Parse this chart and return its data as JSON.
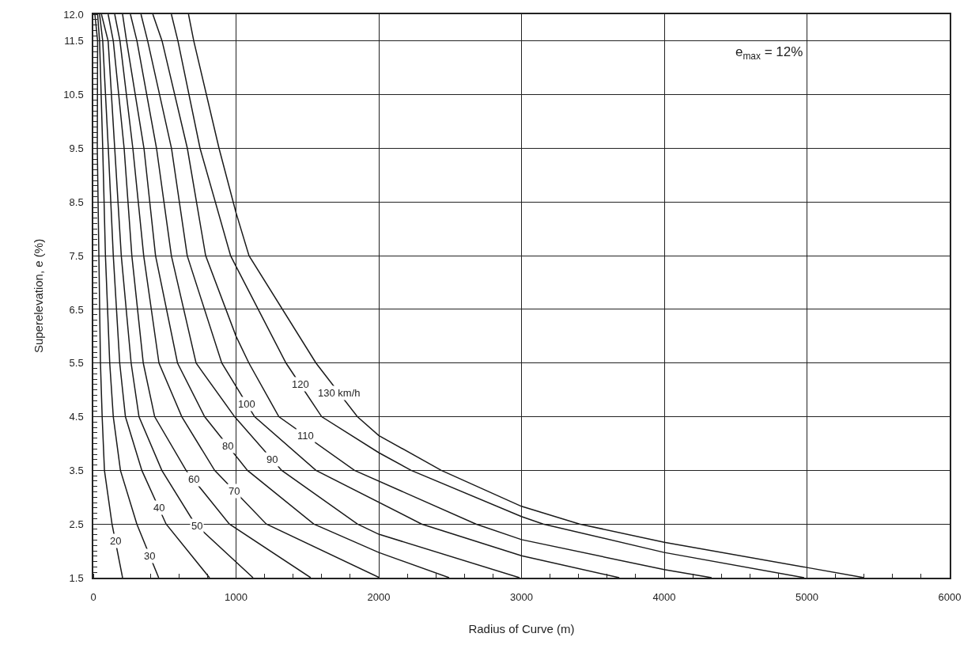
{
  "chart_data": {
    "type": "line",
    "xlabel": "Radius of Curve (m)",
    "ylabel": "Superelevation, e (%)",
    "annotations": [
      "e$_{max}$ = 12%"
    ],
    "xlim": [
      0,
      6000
    ],
    "xticks": [
      0,
      1000,
      2000,
      3000,
      4000,
      5000,
      6000
    ],
    "ylim": [
      1.5,
      12
    ],
    "yticks": [
      1.5,
      2.5,
      3.5,
      4.5,
      5.5,
      6.5,
      7.5,
      8.5,
      9.5,
      10.5,
      11.5,
      {
        "value": 12,
        "label": "12.0"
      }
    ],
    "grid": true,
    "legend": false,
    "marker": "none",
    "line_style": "solid",
    "series": [
      {
        "name": "20",
        "color": "#1a1a1a",
        "x": [
          11,
          30,
          28,
          39,
          50,
          62,
          78,
          131,
          205
        ],
        "values": [
          12,
          11.5,
          9.5,
          7.5,
          5.5,
          4.5,
          3.5,
          2.5,
          1.5
        ]
      },
      {
        "name": "30",
        "color": "#1a1a1a",
        "x": [
          30,
          44,
          66,
          85,
          115,
          140,
          190,
          305,
          458
        ],
        "values": [
          12,
          11.5,
          9.5,
          7.5,
          5.5,
          4.5,
          3.5,
          2.5,
          1.5
        ]
      },
      {
        "name": "40",
        "color": "#1a1a1a",
        "x": [
          44,
          66,
          105,
          140,
          185,
          225,
          340,
          510,
          814
        ],
        "values": [
          12,
          11.5,
          9.5,
          7.5,
          5.5,
          4.5,
          3.5,
          2.5,
          1.5
        ]
      },
      {
        "name": "50",
        "color": "#1a1a1a",
        "x": [
          57,
          104,
          150,
          196,
          265,
          320,
          480,
          713,
          1119
        ],
        "values": [
          12,
          11.5,
          9.5,
          7.5,
          5.5,
          4.5,
          3.5,
          2.5,
          1.5
        ]
      },
      {
        "name": "60",
        "color": "#1a1a1a",
        "x": [
          104,
          140,
          216,
          270,
          350,
          430,
          650,
          953,
          1523
        ],
        "values": [
          12,
          11.5,
          9.5,
          7.5,
          5.5,
          4.5,
          3.5,
          2.5,
          1.5
        ]
      },
      {
        "name": "70",
        "color": "#1a1a1a",
        "x": [
          150,
          187,
          277,
          353,
          460,
          620,
          850,
          1212,
          2005
        ],
        "values": [
          12,
          11.5,
          9.5,
          7.5,
          5.5,
          4.5,
          3.5,
          2.5,
          1.5
        ]
      },
      {
        "name": "80",
        "color": "#1a1a1a",
        "x": [
          205,
          233,
          355,
          436,
          590,
          780,
          1080,
          1544,
          2000,
          2493
        ],
        "values": [
          12,
          11.5,
          9.5,
          7.5,
          5.5,
          4.5,
          3.5,
          2.5,
          1.97,
          1.5
        ]
      },
      {
        "name": "90",
        "color": "#1a1a1a",
        "x": [
          260,
          306,
          443,
          547,
          720,
          990,
          1320,
          1850,
          2000,
          2986
        ],
        "values": [
          12,
          11.5,
          9.5,
          7.5,
          5.5,
          4.5,
          3.5,
          2.5,
          2.31,
          1.5
        ]
      },
      {
        "name": "100",
        "color": "#1a1a1a",
        "x": [
          334,
          381,
          548,
          658,
          900,
          1130,
          1560,
          2300,
          3000,
          3685
        ],
        "values": [
          12,
          11.5,
          9.5,
          7.5,
          5.5,
          4.5,
          3.5,
          2.5,
          1.91,
          1.5
        ]
      },
      {
        "name": "110",
        "color": "#1a1a1a",
        "x": [
          417,
          482,
          659,
          787,
          1000,
          1090,
          1300,
          1830,
          2681,
          3000,
          4000,
          4332
        ],
        "values": [
          12,
          11.5,
          9.5,
          7.5,
          6,
          5.5,
          4.5,
          3.5,
          2.5,
          2.21,
          1.65,
          1.5
        ]
      },
      {
        "name": "120",
        "color": "#1a1a1a",
        "x": [
          547,
          593,
          748,
          962,
          1000,
          1350,
          1600,
          2000,
          2227,
          3000,
          3152,
          4000,
          4980
        ],
        "values": [
          12,
          11.5,
          9.5,
          7.5,
          7.3,
          5.5,
          4.5,
          3.83,
          3.5,
          2.64,
          2.5,
          1.97,
          1.5
        ]
      },
      {
        "name": "130 km/h",
        "color": "#1a1a1a",
        "x": [
          667,
          704,
          881,
          1000,
          1091,
          1560,
          1850,
          2000,
          2438,
          3000,
          3407,
          4000,
          5000,
          5401
        ],
        "values": [
          12,
          11.5,
          9.5,
          8.3,
          7.5,
          5.5,
          4.5,
          4.15,
          3.5,
          2.83,
          2.5,
          2.16,
          1.69,
          1.5
        ]
      }
    ]
  }
}
